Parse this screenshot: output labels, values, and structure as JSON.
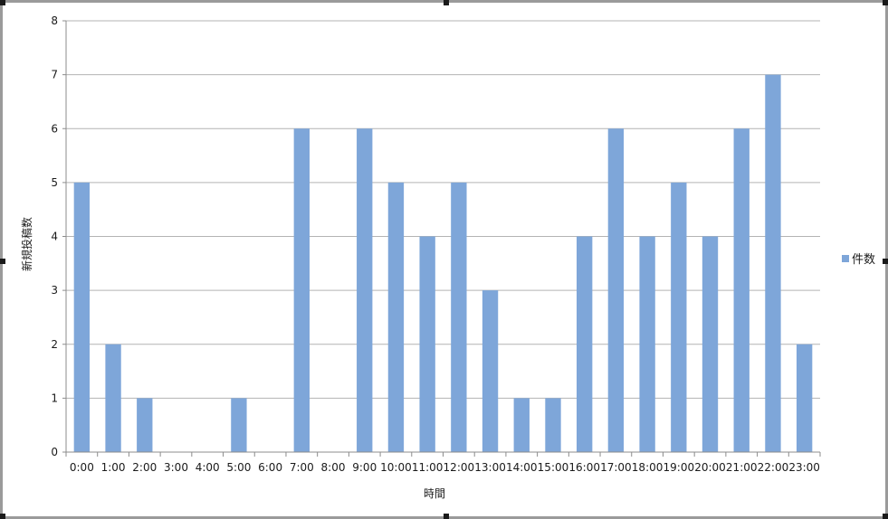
{
  "chart_data": {
    "type": "bar",
    "categories": [
      "0:00",
      "1:00",
      "2:00",
      "3:00",
      "4:00",
      "5:00",
      "6:00",
      "7:00",
      "8:00",
      "9:00",
      "10:00",
      "11:00",
      "12:00",
      "13:00",
      "14:00",
      "15:00",
      "16:00",
      "17:00",
      "18:00",
      "19:00",
      "20:00",
      "21:00",
      "22:00",
      "23:00"
    ],
    "series": [
      {
        "name": "件数",
        "color": "#7ea6d9",
        "values": [
          5,
          2,
          1,
          0,
          0,
          1,
          0,
          6,
          0,
          6,
          5,
          4,
          5,
          3,
          1,
          1,
          4,
          6,
          4,
          5,
          4,
          6,
          7,
          2
        ]
      }
    ],
    "title": "",
    "xlabel": "時間",
    "ylabel": "新規投稿数",
    "ylim": [
      0,
      8
    ],
    "yticks": [
      "0",
      "1",
      "2",
      "3",
      "4",
      "5",
      "6",
      "7",
      "8"
    ],
    "grid": true,
    "legend_position": "right"
  },
  "colors": {
    "bar": "#7ea6d9",
    "grid": "#b3b3b3",
    "axis": "#8c8c8c"
  }
}
